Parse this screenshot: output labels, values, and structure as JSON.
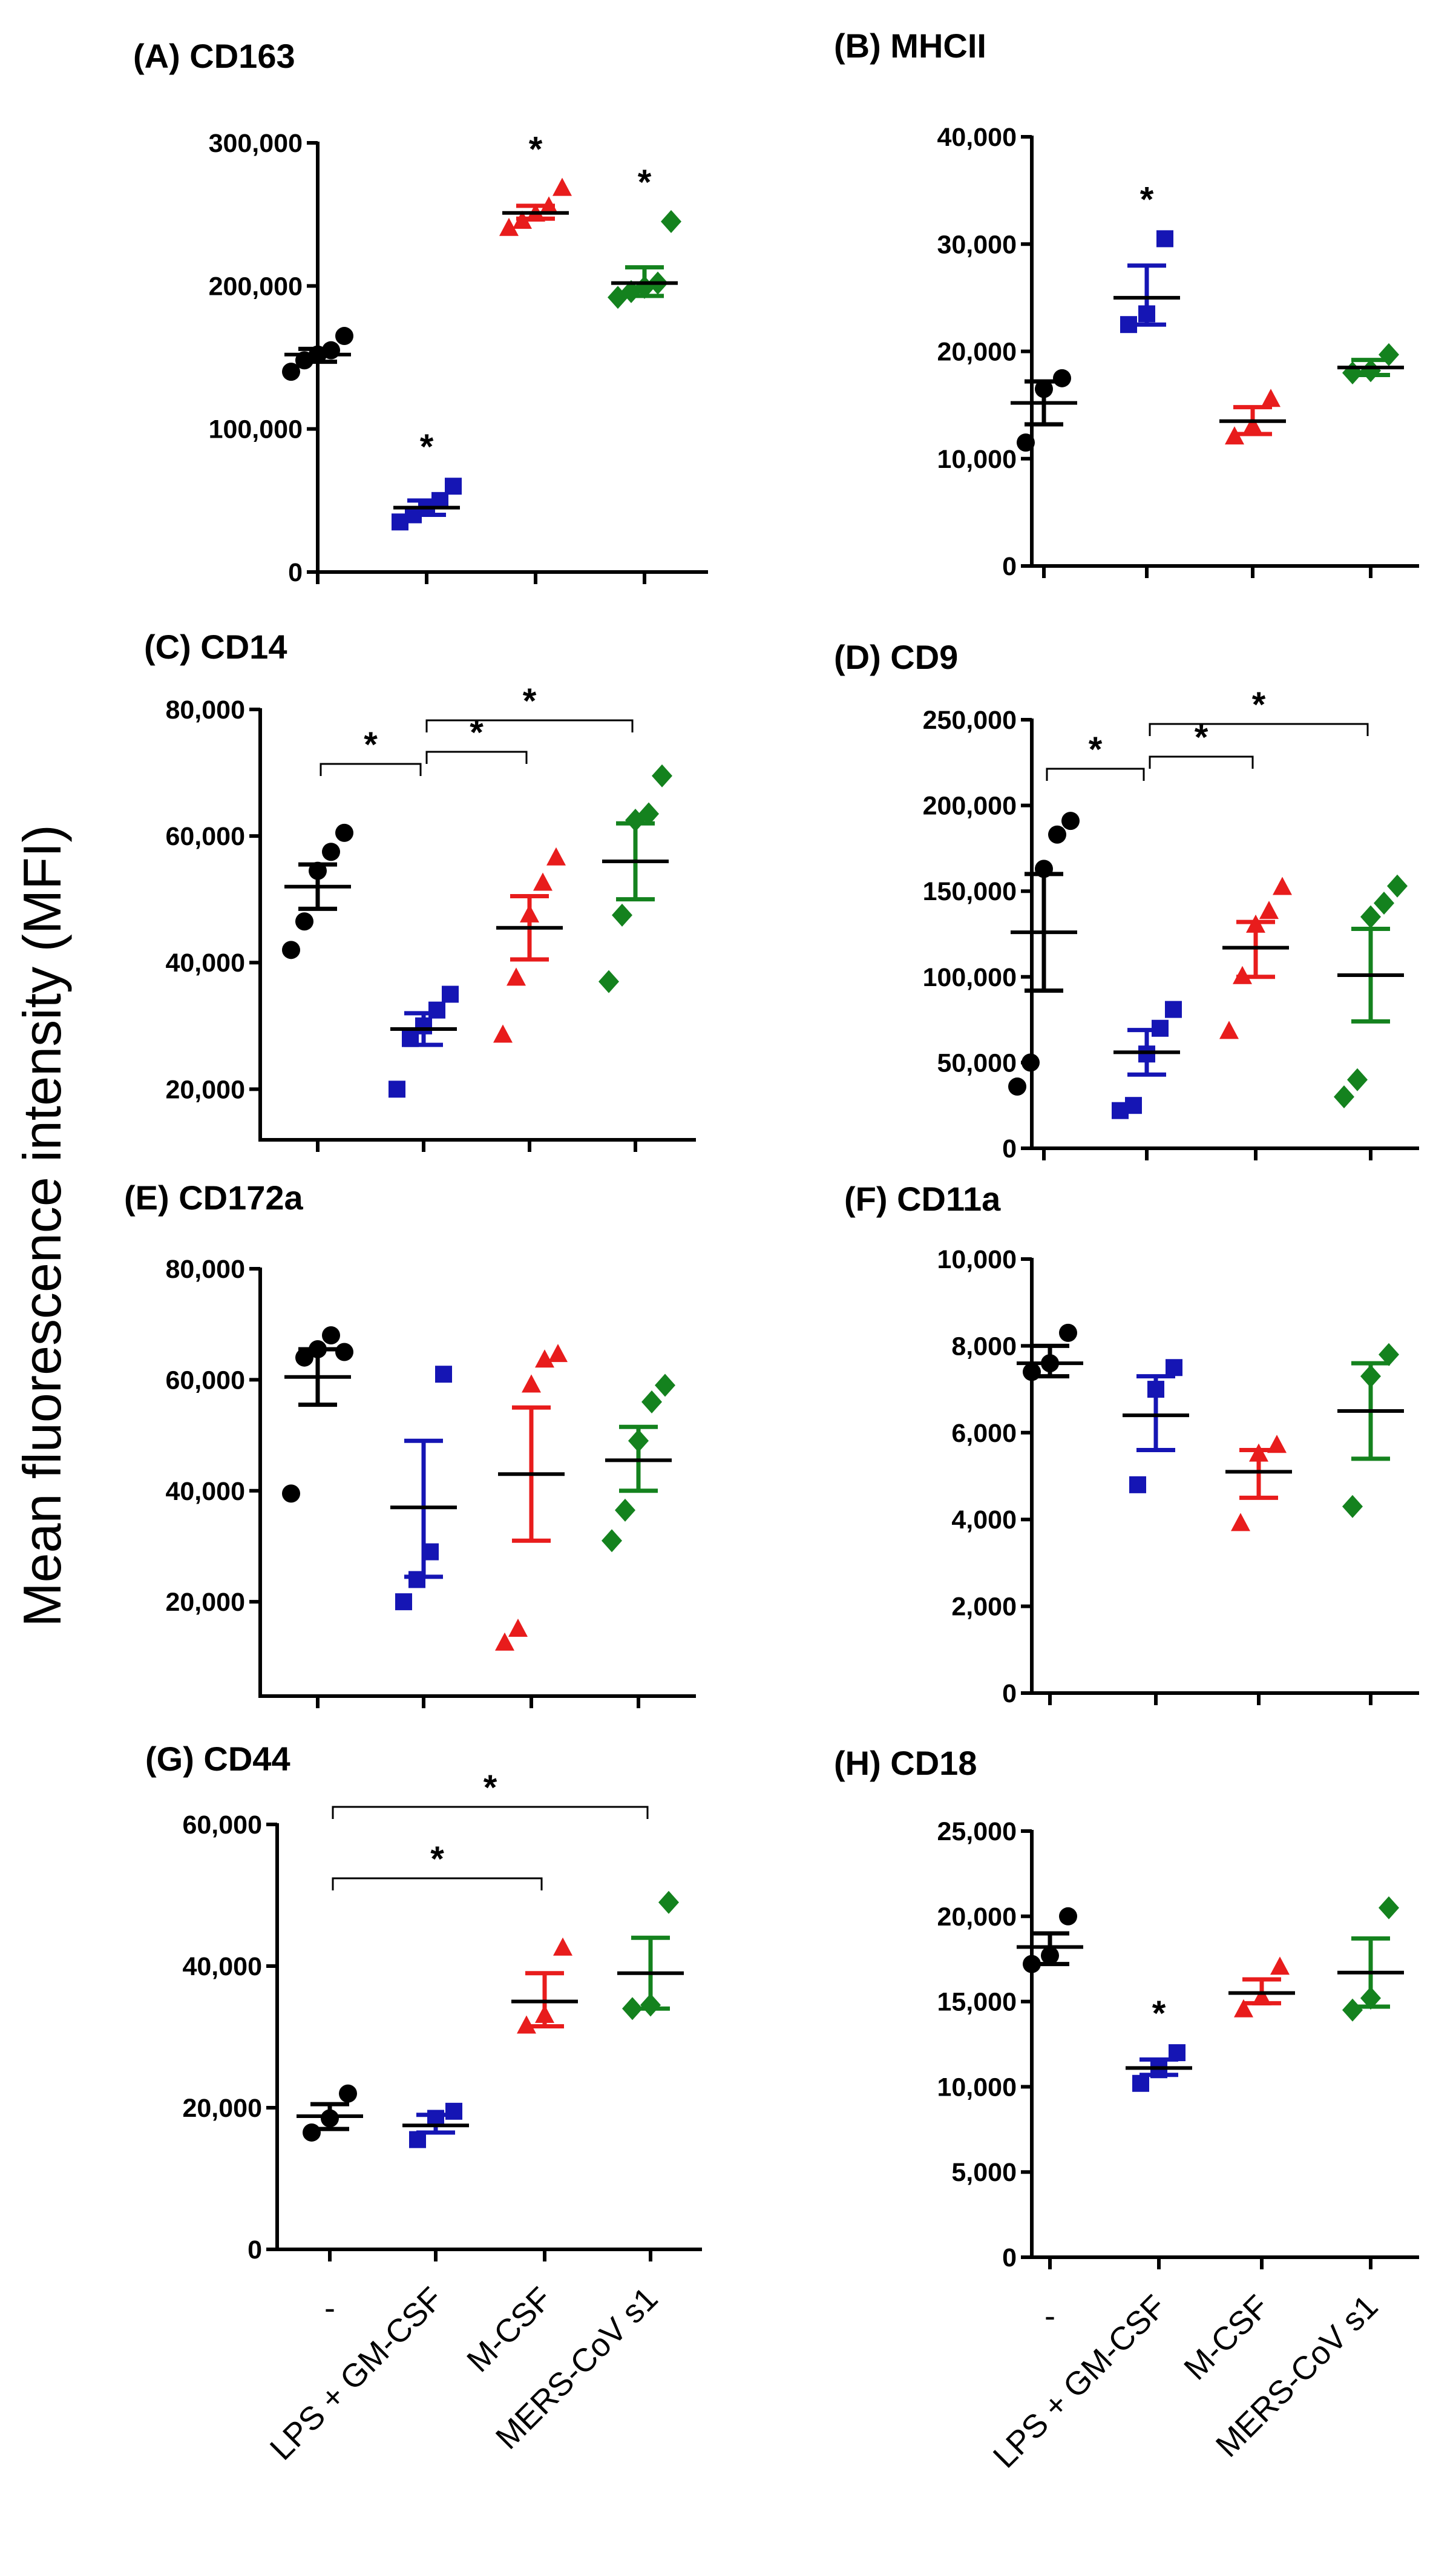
{
  "figure": {
    "y_axis_label": "Mean fluorescence intensity (MFI)",
    "group_colors": [
      "#000000",
      "#1515b4",
      "#e81c1c",
      "#14821e"
    ],
    "marker_shapes": [
      "circle",
      "square",
      "triangle",
      "diamond"
    ]
  },
  "chart_data": [
    {
      "id": "A",
      "type": "scatter",
      "title": "(A) CD163",
      "categories": [
        "-",
        "LPS + GM-CSF",
        "M-CSF",
        "MERS-CoV s1"
      ],
      "yticks": [
        "0",
        "100,000",
        "200,000",
        "300,000"
      ],
      "ylim": [
        0,
        300000
      ],
      "series": [
        {
          "name": "-",
          "points": [
            140000,
            148000,
            152000,
            155000,
            165000
          ],
          "mean": 152000,
          "sem_low": 147000,
          "sem_high": 156000
        },
        {
          "name": "LPS + GM-CSF",
          "points": [
            35000,
            40000,
            45000,
            50000,
            60000
          ],
          "mean": 45000,
          "sem_low": 40000,
          "sem_high": 50000
        },
        {
          "name": "M-CSF",
          "points": [
            240000,
            245000,
            250000,
            255000,
            268000
          ],
          "mean": 251000,
          "sem_low": 247000,
          "sem_high": 256000
        },
        {
          "name": "MERS-CoV s1",
          "points": [
            192000,
            196000,
            199000,
            202000,
            245000
          ],
          "mean": 202000,
          "sem_low": 193000,
          "sem_high": 213000
        }
      ],
      "significance": [
        "",
        "*",
        "*",
        "*"
      ],
      "brackets": []
    },
    {
      "id": "B",
      "type": "scatter",
      "title": "(B) MHCII",
      "categories": [
        "-",
        "LPS + GM-CSF",
        "M-CSF",
        "MERS-CoV s1"
      ],
      "yticks": [
        "0",
        "10,000",
        "20,000",
        "30,000",
        "40,000"
      ],
      "ylim": [
        0,
        40000
      ],
      "series": [
        {
          "name": "-",
          "points": [
            11500,
            16500,
            17500
          ],
          "mean": 15200,
          "sem_low": 13200,
          "sem_high": 17200
        },
        {
          "name": "LPS + GM-CSF",
          "points": [
            22500,
            23500,
            30500
          ],
          "mean": 25000,
          "sem_low": 22500,
          "sem_high": 28000
        },
        {
          "name": "M-CSF",
          "points": [
            12000,
            13000,
            15500
          ],
          "mean": 13500,
          "sem_low": 12300,
          "sem_high": 14800
        },
        {
          "name": "MERS-CoV s1",
          "points": [
            18000,
            18200,
            19700
          ],
          "mean": 18500,
          "sem_low": 17800,
          "sem_high": 19200
        }
      ],
      "significance": [
        "",
        "*",
        "",
        ""
      ],
      "brackets": []
    },
    {
      "id": "C",
      "type": "scatter",
      "title": "(C) CD14",
      "categories": [
        "-",
        "LPS + GM-CSF",
        "M-CSF",
        "MERS-CoV s1"
      ],
      "yticks": [
        "20,000",
        "40,000",
        "60,000",
        "80,000"
      ],
      "ylim": [
        12000,
        80000
      ],
      "series": [
        {
          "name": "-",
          "points": [
            42000,
            46500,
            54500,
            57500,
            60500
          ],
          "mean": 52000,
          "sem_low": 48500,
          "sem_high": 55500
        },
        {
          "name": "LPS + GM-CSF",
          "points": [
            20000,
            28000,
            30000,
            32500,
            35000
          ],
          "mean": 29500,
          "sem_low": 27000,
          "sem_high": 32000
        },
        {
          "name": "M-CSF",
          "points": [
            28500,
            37500,
            47500,
            52500,
            56500
          ],
          "mean": 45500,
          "sem_low": 40500,
          "sem_high": 50500
        },
        {
          "name": "MERS-CoV s1",
          "points": [
            37000,
            47500,
            62500,
            63500,
            69500
          ],
          "mean": 56000,
          "sem_low": 50000,
          "sem_high": 62000
        }
      ],
      "significance": [
        "",
        "",
        "",
        ""
      ],
      "brackets": [
        {
          "from": 0,
          "to": 1,
          "label": "*"
        },
        {
          "from": 1,
          "to": 2,
          "label": "*"
        },
        {
          "from": 1,
          "to": 3,
          "label": "*"
        }
      ]
    },
    {
      "id": "D",
      "type": "scatter",
      "title": "(D) CD9",
      "categories": [
        "-",
        "LPS + GM-CSF",
        "M-CSF",
        "MERS-CoV s1"
      ],
      "yticks": [
        "0",
        "50,000",
        "100,000",
        "150,000",
        "200,000",
        "250,000"
      ],
      "ylim": [
        0,
        250000
      ],
      "series": [
        {
          "name": "-",
          "points": [
            36000,
            50000,
            163000,
            183000,
            191000
          ],
          "mean": 126000,
          "sem_low": 92000,
          "sem_high": 160000
        },
        {
          "name": "LPS + GM-CSF",
          "points": [
            22000,
            25000,
            55000,
            70000,
            81000
          ],
          "mean": 56000,
          "sem_low": 43000,
          "sem_high": 69000
        },
        {
          "name": "M-CSF",
          "points": [
            68000,
            100000,
            130000,
            138000,
            152000
          ],
          "mean": 117000,
          "sem_low": 100000,
          "sem_high": 132000
        },
        {
          "name": "MERS-CoV s1",
          "points": [
            30000,
            40000,
            135000,
            143000,
            153000
          ],
          "mean": 101000,
          "sem_low": 74000,
          "sem_high": 128000
        }
      ],
      "significance": [
        "",
        "",
        "",
        ""
      ],
      "brackets": [
        {
          "from": 0,
          "to": 1,
          "label": "*"
        },
        {
          "from": 1,
          "to": 2,
          "label": "*"
        },
        {
          "from": 1,
          "to": 3,
          "label": "*"
        }
      ]
    },
    {
      "id": "E",
      "type": "scatter",
      "title": "(E) CD172a",
      "categories": [
        "-",
        "LPS + GM-CSF",
        "M-CSF",
        "MERS-CoV s1"
      ],
      "yticks": [
        "20,000",
        "40,000",
        "60,000",
        "80,000"
      ],
      "ylim": [
        3000,
        80000
      ],
      "series": [
        {
          "name": "-",
          "points": [
            39500,
            64000,
            65500,
            68000,
            65000
          ],
          "mean": 60500,
          "sem_low": 55500,
          "sem_high": 65500
        },
        {
          "name": "LPS + GM-CSF",
          "points": [
            20000,
            24000,
            29000,
            61000
          ],
          "mean": 37000,
          "sem_low": 24500,
          "sem_high": 49000
        },
        {
          "name": "M-CSF",
          "points": [
            12500,
            15000,
            59000,
            63500,
            64500
          ],
          "mean": 43000,
          "sem_low": 31000,
          "sem_high": 55000
        },
        {
          "name": "MERS-CoV s1",
          "points": [
            31000,
            36500,
            49000,
            56000,
            59000
          ],
          "mean": 45500,
          "sem_low": 40000,
          "sem_high": 51500
        }
      ],
      "significance": [
        "",
        "",
        "",
        ""
      ],
      "brackets": []
    },
    {
      "id": "F",
      "type": "scatter",
      "title": "(F) CD11a",
      "categories": [
        "-",
        "LPS + GM-CSF",
        "M-CSF",
        "MERS-CoV s1"
      ],
      "yticks": [
        "0",
        "2,000",
        "4,000",
        "6,000",
        "8,000",
        "10,000"
      ],
      "ylim": [
        0,
        10000
      ],
      "series": [
        {
          "name": "-",
          "points": [
            7400,
            7600,
            8300
          ],
          "mean": 7600,
          "sem_low": 7300,
          "sem_high": 8000
        },
        {
          "name": "LPS + GM-CSF",
          "points": [
            4800,
            7000,
            7500
          ],
          "mean": 6400,
          "sem_low": 5600,
          "sem_high": 7300
        },
        {
          "name": "M-CSF",
          "points": [
            3900,
            5500,
            5700
          ],
          "mean": 5100,
          "sem_low": 4500,
          "sem_high": 5600
        },
        {
          "name": "MERS-CoV s1",
          "points": [
            4300,
            7300,
            7800
          ],
          "mean": 6500,
          "sem_low": 5400,
          "sem_high": 7600
        }
      ],
      "significance": [
        "",
        "",
        "",
        ""
      ],
      "brackets": []
    },
    {
      "id": "G",
      "type": "scatter",
      "title": "(G) CD44",
      "categories": [
        "-",
        "LPS + GM-CSF",
        "M-CSF",
        "MERS-CoV s1"
      ],
      "yticks": [
        "0",
        "20,000",
        "40,000",
        "60,000"
      ],
      "ylim": [
        0,
        60000
      ],
      "series": [
        {
          "name": "-",
          "points": [
            16500,
            18500,
            22000
          ],
          "mean": 18800,
          "sem_low": 17000,
          "sem_high": 20500
        },
        {
          "name": "LPS + GM-CSF",
          "points": [
            15500,
            18500,
            19500
          ],
          "mean": 17500,
          "sem_low": 16500,
          "sem_high": 19000
        },
        {
          "name": "M-CSF",
          "points": [
            31500,
            33000,
            42500
          ],
          "mean": 35000,
          "sem_low": 31500,
          "sem_high": 39000
        },
        {
          "name": "MERS-CoV s1",
          "points": [
            34000,
            34500,
            49000
          ],
          "mean": 39000,
          "sem_low": 34000,
          "sem_high": 44000
        }
      ],
      "significance": [
        "",
        "",
        "",
        ""
      ],
      "brackets": [
        {
          "from": 0,
          "to": 2,
          "label": "*"
        },
        {
          "from": 0,
          "to": 3,
          "label": "*"
        }
      ]
    },
    {
      "id": "H",
      "type": "scatter",
      "title": "(H) CD18",
      "categories": [
        "-",
        "LPS + GM-CSF",
        "M-CSF",
        "MERS-CoV s1"
      ],
      "yticks": [
        "0",
        "5,000",
        "10,000",
        "15,000",
        "20,000",
        "25,000"
      ],
      "ylim": [
        0,
        25000
      ],
      "series": [
        {
          "name": "-",
          "points": [
            17200,
            17700,
            20000
          ],
          "mean": 18200,
          "sem_low": 17200,
          "sem_high": 19000
        },
        {
          "name": "LPS + GM-CSF",
          "points": [
            10200,
            11000,
            12000
          ],
          "mean": 11100,
          "sem_low": 10700,
          "sem_high": 11600
        },
        {
          "name": "M-CSF",
          "points": [
            14500,
            15200,
            17000
          ],
          "mean": 15500,
          "sem_low": 14900,
          "sem_high": 16300
        },
        {
          "name": "MERS-CoV s1",
          "points": [
            14500,
            15200,
            20500
          ],
          "mean": 16700,
          "sem_low": 14700,
          "sem_high": 18700
        }
      ],
      "significance": [
        "",
        "*",
        "",
        ""
      ],
      "brackets": []
    }
  ]
}
